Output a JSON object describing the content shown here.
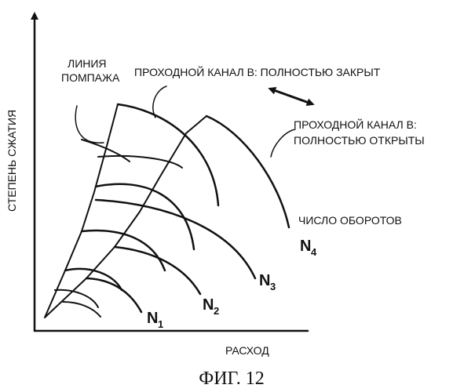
{
  "axes": {
    "y_label": "СТЕПЕНЬ СЖАТИЯ",
    "x_label": "РАСХОД"
  },
  "annotations": {
    "surge_line_1": "ЛИНИЯ",
    "surge_line_2": "ПОМПАЖА",
    "bypass_closed": "ПРОХОДНОЙ КАНАЛ В:  ПОЛНОСТЬЮ  ЗАКРЫТ",
    "bypass_open_1": "ПРОХОДНОЙ КАНАЛ В:",
    "bypass_open_2": "ПОЛНОСТЬЮ  ОТКРЫТЫ",
    "speed": "ЧИСЛО ОБОРОТОВ"
  },
  "speed_lines": [
    {
      "letter": "N",
      "index": "1"
    },
    {
      "letter": "N",
      "index": "2"
    },
    {
      "letter": "N",
      "index": "3"
    },
    {
      "letter": "N",
      "index": "4"
    }
  ],
  "caption": "ФИГ. 12",
  "colors": {
    "ink": "#111111",
    "background": "#ffffff"
  }
}
